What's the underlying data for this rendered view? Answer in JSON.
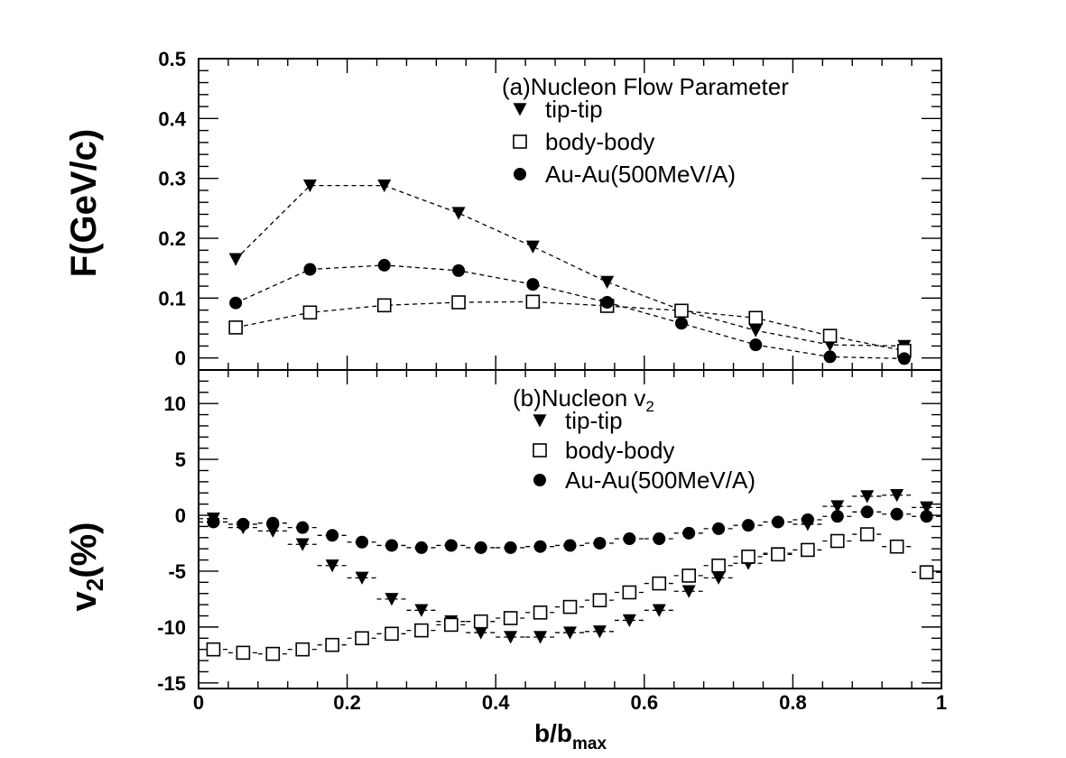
{
  "chart_data": [
    {
      "type": "scatter",
      "panel": "a",
      "legend_header": "(a)Nucleon Flow Parameter",
      "ylabel": "F(GeV/c)",
      "xlim": [
        0,
        1
      ],
      "ylim": [
        -0.02,
        0.5
      ],
      "yticks": [
        {
          "value": 0,
          "label": "0"
        },
        {
          "value": 0.1,
          "label": "0.1"
        },
        {
          "value": 0.2,
          "label": "0.2"
        },
        {
          "value": 0.3,
          "label": "0.3"
        },
        {
          "value": 0.4,
          "label": "0.4"
        },
        {
          "value": 0.5,
          "label": "0.5"
        }
      ],
      "legend_position": "top-right",
      "series": [
        {
          "name": "tip-tip",
          "marker": "triangle-down",
          "x": [
            0.05,
            0.15,
            0.25,
            0.35,
            0.45,
            0.55,
            0.65,
            0.75,
            0.85,
            0.95
          ],
          "y": [
            0.165,
            0.288,
            0.288,
            0.242,
            0.186,
            0.127,
            0.08,
            0.046,
            0.022,
            0.02
          ]
        },
        {
          "name": "body-body",
          "marker": "square-open",
          "x": [
            0.05,
            0.15,
            0.25,
            0.35,
            0.45,
            0.55,
            0.65,
            0.75,
            0.85,
            0.95
          ],
          "y": [
            0.051,
            0.076,
            0.088,
            0.093,
            0.094,
            0.087,
            0.079,
            0.067,
            0.037,
            0.012
          ]
        },
        {
          "name": "Au-Au(500MeV/A)",
          "marker": "circle",
          "x": [
            0.05,
            0.15,
            0.25,
            0.35,
            0.45,
            0.55,
            0.65,
            0.75,
            0.85,
            0.95
          ],
          "y": [
            0.092,
            0.148,
            0.155,
            0.146,
            0.123,
            0.093,
            0.058,
            0.022,
            0.002,
            -0.001
          ]
        }
      ]
    },
    {
      "type": "scatter",
      "panel": "b",
      "legend_header_main": "(b)Nucleon v",
      "legend_header_sub": "2",
      "ylabel_main": "v",
      "ylabel_sub": "2",
      "ylabel_rest": "(%)",
      "xlabel_main": "b/b",
      "xlabel_sub": "max",
      "xlim": [
        0,
        1
      ],
      "ylim": [
        -15.5,
        13
      ],
      "xticks": [
        {
          "value": 0,
          "label": "0"
        },
        {
          "value": 0.2,
          "label": "0.2"
        },
        {
          "value": 0.4,
          "label": "0.4"
        },
        {
          "value": 0.6,
          "label": "0.6"
        },
        {
          "value": 0.8,
          "label": "0.8"
        },
        {
          "value": 1,
          "label": "1"
        }
      ],
      "yticks": [
        {
          "value": -15,
          "label": "-15"
        },
        {
          "value": -10,
          "label": "-10"
        },
        {
          "value": -5,
          "label": "-5"
        },
        {
          "value": 0,
          "label": "0"
        },
        {
          "value": 5,
          "label": "5"
        },
        {
          "value": 10,
          "label": "10"
        }
      ],
      "legend_position": "top-right",
      "series": [
        {
          "name": "tip-tip",
          "marker": "triangle-down",
          "x": [
            0.02,
            0.06,
            0.1,
            0.14,
            0.18,
            0.22,
            0.26,
            0.3,
            0.34,
            0.38,
            0.42,
            0.46,
            0.5,
            0.54,
            0.58,
            0.62,
            0.66,
            0.7,
            0.74,
            0.78,
            0.82,
            0.86,
            0.9,
            0.94,
            0.98
          ],
          "y": [
            -0.3,
            -1.1,
            -1.4,
            -2.6,
            -4.5,
            -5.6,
            -7.5,
            -8.5,
            -9.5,
            -10.5,
            -10.9,
            -10.9,
            -10.5,
            -10.4,
            -9.4,
            -8.5,
            -6.8,
            -5.6,
            -4.3,
            -3.4,
            -0.8,
            0.8,
            1.7,
            1.8,
            0.7
          ]
        },
        {
          "name": "body-body",
          "marker": "square-open",
          "x": [
            0.02,
            0.06,
            0.1,
            0.14,
            0.18,
            0.22,
            0.26,
            0.3,
            0.34,
            0.38,
            0.42,
            0.46,
            0.5,
            0.54,
            0.58,
            0.62,
            0.66,
            0.7,
            0.74,
            0.78,
            0.82,
            0.86,
            0.9,
            0.94,
            0.98
          ],
          "y": [
            -12.0,
            -12.3,
            -12.4,
            -12.0,
            -11.6,
            -11.0,
            -10.6,
            -10.3,
            -9.8,
            -9.5,
            -9.2,
            -8.7,
            -8.2,
            -7.6,
            -6.9,
            -6.1,
            -5.4,
            -4.5,
            -3.7,
            -3.5,
            -3.1,
            -2.3,
            -1.7,
            -2.8,
            -5.1
          ]
        },
        {
          "name": "Au-Au(500MeV/A)",
          "marker": "circle",
          "x": [
            0.02,
            0.06,
            0.1,
            0.14,
            0.18,
            0.22,
            0.26,
            0.3,
            0.34,
            0.38,
            0.42,
            0.46,
            0.5,
            0.54,
            0.58,
            0.62,
            0.66,
            0.7,
            0.74,
            0.78,
            0.82,
            0.86,
            0.9,
            0.94,
            0.98
          ],
          "y": [
            -0.6,
            -0.8,
            -0.7,
            -1.1,
            -1.8,
            -2.4,
            -2.7,
            -2.9,
            -2.7,
            -2.9,
            -2.9,
            -2.8,
            -2.7,
            -2.5,
            -2.1,
            -2.1,
            -1.6,
            -1.2,
            -0.9,
            -0.6,
            -0.4,
            -0.1,
            0.3,
            0.1,
            -0.1
          ]
        }
      ]
    }
  ]
}
